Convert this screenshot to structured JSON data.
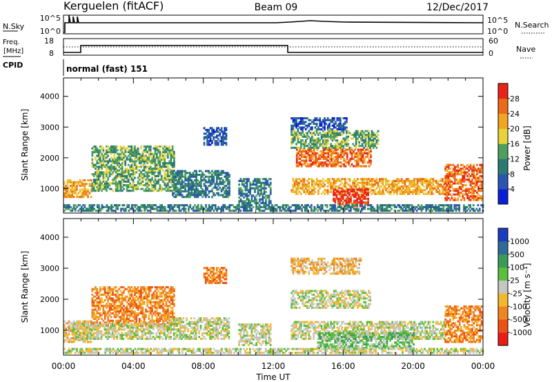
{
  "header": {
    "station": "Kerguelen (fitACF)",
    "beam": "Beam 09",
    "date": "12/Dec/2017"
  },
  "noise_panel": {
    "left_label": "N.Sky",
    "right_label": "N.Search",
    "ticks_left": [
      "10^5",
      "10^0"
    ],
    "ticks_right": [
      "10^5",
      "10^0"
    ]
  },
  "freq_panel": {
    "left_label_1": "Freq.",
    "left_label_2": "[MHz]",
    "right_label": "Nave",
    "ticks_left": [
      "18",
      "8"
    ],
    "ticks_right": [
      "60",
      "0"
    ]
  },
  "cpid": {
    "label": "CPID",
    "value": "normal (fast) 151"
  },
  "x_axis": {
    "ticks": [
      "00:00",
      "04:00",
      "08:00",
      "12:00",
      "16:00",
      "20:00",
      "00:00"
    ],
    "label": "Time UT"
  },
  "colors": {
    "power": [
      "#0a1fd8",
      "#2a55b0",
      "#2a7a72",
      "#4e9e5e",
      "#e8d23a",
      "#f0a620",
      "#ec6a18",
      "#e82418"
    ],
    "velocity": [
      "#ea1c14",
      "#ec5214",
      "#f08420",
      "#f2b82c",
      "#c6c6c0",
      "#5abf3c",
      "#3a9a58",
      "#2f6a98",
      "#1c3cc0"
    ]
  },
  "chart_data": [
    {
      "type": "heatmap",
      "name": "Power",
      "ylabel": "Slant Range [km]",
      "xlabel": "Time UT",
      "xlim": [
        0,
        24
      ],
      "ylim": [
        200,
        4600
      ],
      "y_ticks": [
        "1000",
        "2000",
        "3000",
        "4000"
      ],
      "colorbar_label": "Power [dB]",
      "colorbar_ticks": [
        "28",
        "24",
        "20",
        "16",
        "12",
        "8",
        "4"
      ],
      "regions": [
        {
          "t0": 0.0,
          "t1": 1.6,
          "r0": 700,
          "r1": 1300,
          "level": 5
        },
        {
          "t0": 1.6,
          "t1": 6.3,
          "r0": 900,
          "r1": 2400,
          "level": 3
        },
        {
          "t0": 6.2,
          "t1": 9.5,
          "r0": 700,
          "r1": 1600,
          "level": 2
        },
        {
          "t0": 8.0,
          "t1": 9.3,
          "r0": 2400,
          "r1": 3000,
          "level": 1
        },
        {
          "t0": 10.0,
          "t1": 11.8,
          "r0": 500,
          "r1": 1300,
          "level": 2
        },
        {
          "t0": 13.0,
          "t1": 16.2,
          "r0": 2900,
          "r1": 3300,
          "level": 1
        },
        {
          "t0": 13.3,
          "t1": 17.6,
          "r0": 1700,
          "r1": 2300,
          "level": 6
        },
        {
          "t0": 13.0,
          "t1": 18.0,
          "r0": 2300,
          "r1": 2900,
          "level": 3
        },
        {
          "t0": 13.0,
          "t1": 22.0,
          "r0": 800,
          "r1": 1300,
          "level": 5
        },
        {
          "t0": 15.4,
          "t1": 17.4,
          "r0": 400,
          "r1": 1000,
          "level": 7
        },
        {
          "t0": 21.8,
          "t1": 23.9,
          "r0": 600,
          "r1": 1800,
          "level": 6
        },
        {
          "t0": 0.0,
          "t1": 24.0,
          "r0": 250,
          "r1": 450,
          "level": 2
        }
      ]
    },
    {
      "type": "heatmap",
      "name": "Velocity",
      "ylabel": "Slant Range [km]",
      "xlabel": "Time UT",
      "xlim": [
        0,
        24
      ],
      "ylim": [
        200,
        4600
      ],
      "y_ticks": [
        "1000",
        "2000",
        "3000",
        "4000"
      ],
      "colorbar_label": "Velocity [m s⁻¹]",
      "colorbar_ticks": [
        "1000",
        "500",
        "100",
        "25",
        "-25",
        "-100",
        "-500",
        "-1000"
      ],
      "regions": [
        {
          "t0": 0.0,
          "t1": 1.6,
          "r0": 600,
          "r1": 1300,
          "level": 3
        },
        {
          "t0": 1.6,
          "t1": 6.3,
          "r0": 1100,
          "r1": 2400,
          "level": 2
        },
        {
          "t0": 0.5,
          "t1": 6.0,
          "r0": 700,
          "r1": 1200,
          "level": 4
        },
        {
          "t0": 6.0,
          "t1": 9.5,
          "r0": 700,
          "r1": 1400,
          "level": 4
        },
        {
          "t0": 8.0,
          "t1": 9.3,
          "r0": 2500,
          "r1": 3000,
          "level": 2
        },
        {
          "t0": 10.0,
          "t1": 11.8,
          "r0": 500,
          "r1": 1200,
          "level": 4
        },
        {
          "t0": 13.0,
          "t1": 17.5,
          "r0": 1700,
          "r1": 2300,
          "level": 4
        },
        {
          "t0": 13.0,
          "t1": 17.0,
          "r0": 2800,
          "r1": 3300,
          "level": 3
        },
        {
          "t0": 13.0,
          "t1": 21.8,
          "r0": 700,
          "r1": 1300,
          "level": 4
        },
        {
          "t0": 14.5,
          "t1": 20.0,
          "r0": 400,
          "r1": 900,
          "level": 5
        },
        {
          "t0": 21.8,
          "t1": 23.9,
          "r0": 600,
          "r1": 1800,
          "level": 2
        },
        {
          "t0": 0.0,
          "t1": 24.0,
          "r0": 250,
          "r1": 400,
          "level": 4
        }
      ]
    }
  ]
}
